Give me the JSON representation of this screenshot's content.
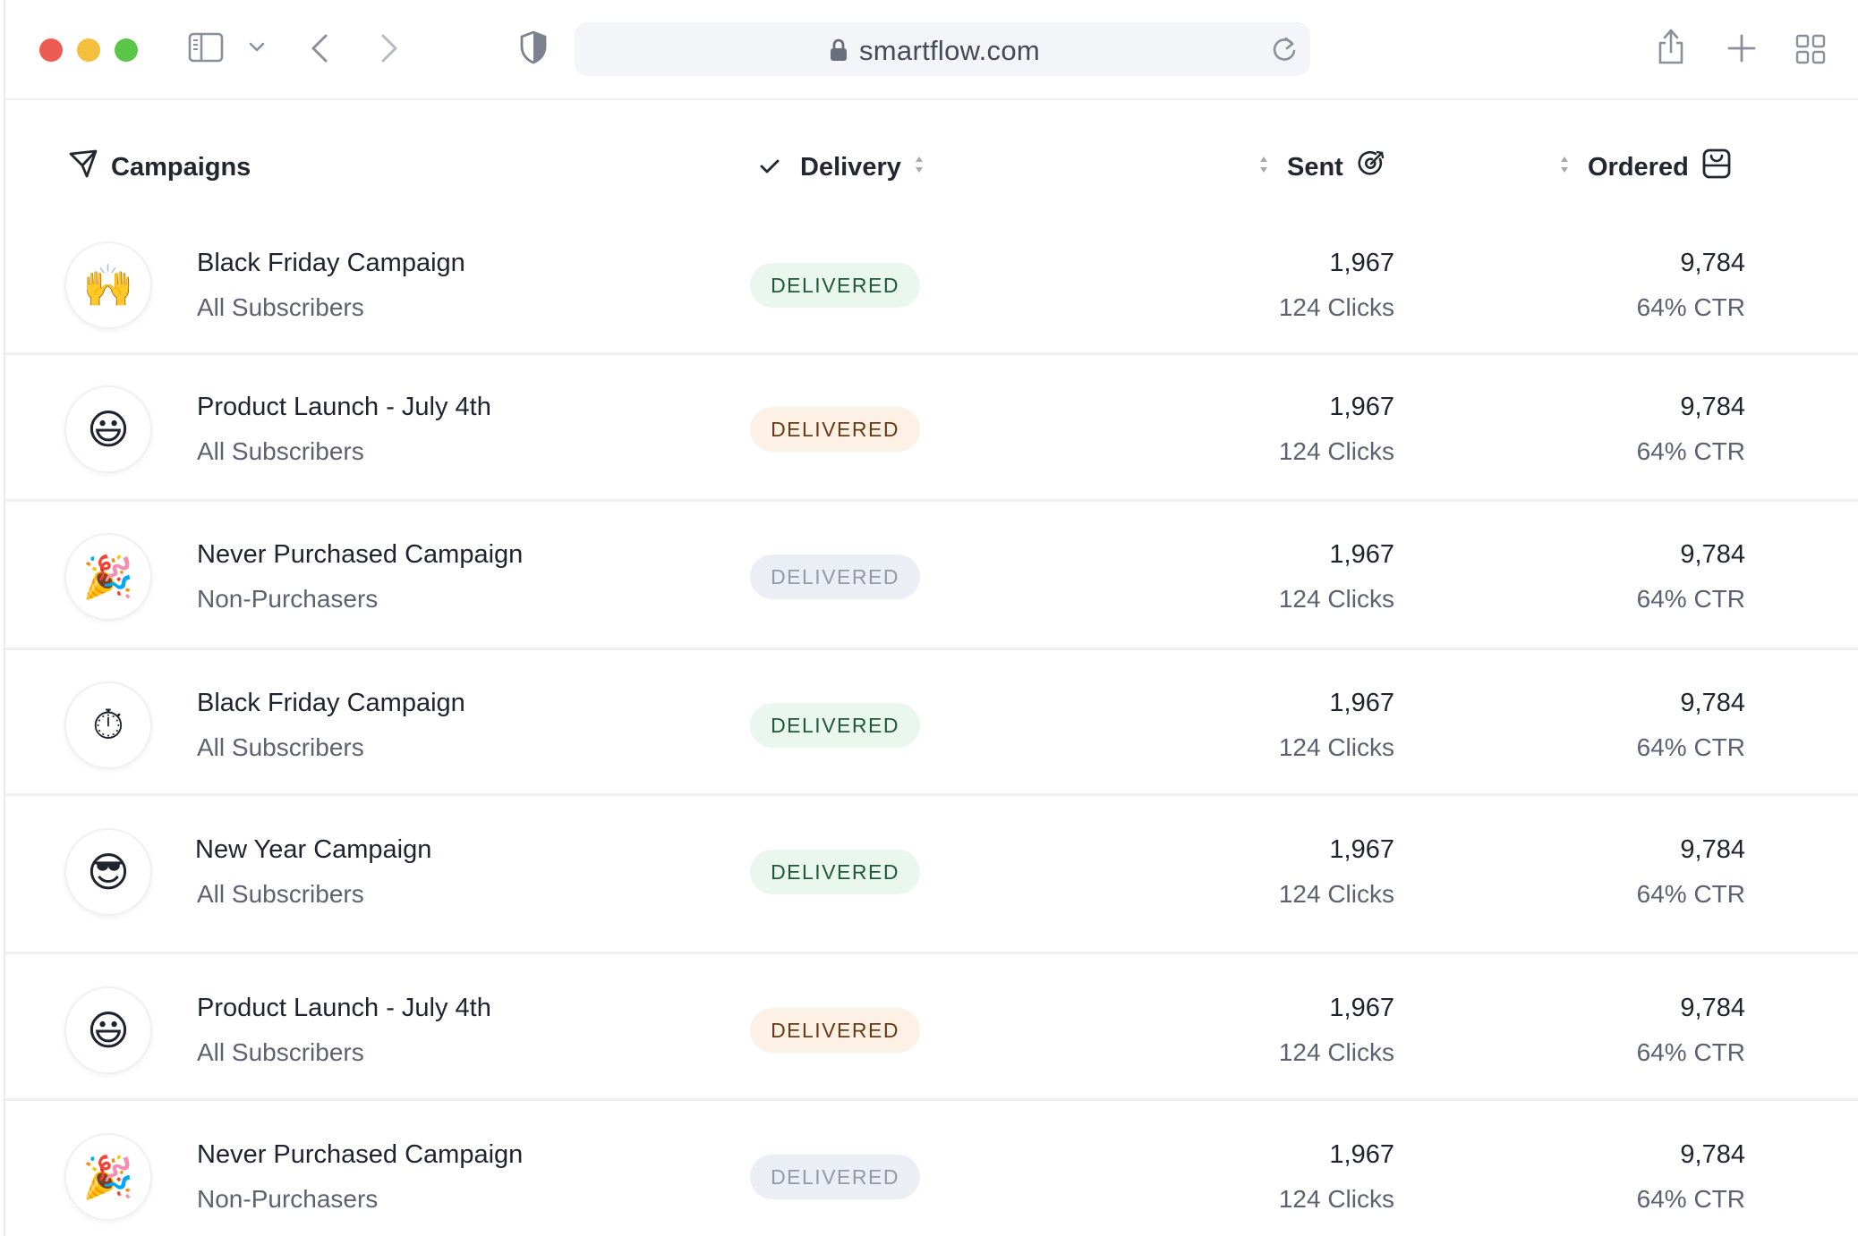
{
  "browser": {
    "url": "smartflow.com"
  },
  "table": {
    "headers": {
      "campaigns": "Campaigns",
      "delivery": "Delivery",
      "sent": "Sent",
      "ordered": "Ordered"
    },
    "rows": [
      {
        "emoji": "🙌",
        "name": "Black Friday Campaign",
        "audience": "All Subscribers",
        "status": "DELIVERED",
        "status_color": "green",
        "sent": "1,967",
        "clicks": "124 Clicks",
        "ordered": "9,784",
        "ctr": "64% CTR"
      },
      {
        "emoji": "😃",
        "name": "Product Launch - July 4th",
        "audience": "All Subscribers",
        "status": "DELIVERED",
        "status_color": "orange",
        "sent": "1,967",
        "clicks": "124 Clicks",
        "ordered": "9,784",
        "ctr": "64% CTR"
      },
      {
        "emoji": "🎉",
        "name": "Never Purchased Campaign",
        "audience": "Non-Purchasers",
        "status": "DELIVERED",
        "status_color": "grey",
        "sent": "1,967",
        "clicks": "124 Clicks",
        "ordered": "9,784",
        "ctr": "64% CTR"
      },
      {
        "emoji": "⏱",
        "name": "Black Friday Campaign",
        "audience": "All Subscribers",
        "status": "DELIVERED",
        "status_color": "green",
        "sent": "1,967",
        "clicks": "124 Clicks",
        "ordered": "9,784",
        "ctr": "64% CTR"
      },
      {
        "emoji": "😎",
        "name": "New Year Campaign",
        "audience": "All Subscribers",
        "status": "DELIVERED",
        "status_color": "green",
        "sent": "1,967",
        "clicks": "124 Clicks",
        "ordered": "9,784",
        "ctr": "64% CTR"
      },
      {
        "emoji": "😃",
        "name": "Product Launch - July 4th",
        "audience": "All Subscribers",
        "status": "DELIVERED",
        "status_color": "orange",
        "sent": "1,967",
        "clicks": "124 Clicks",
        "ordered": "9,784",
        "ctr": "64% CTR"
      },
      {
        "emoji": "🎉",
        "name": "Never Purchased Campaign",
        "audience": "Non-Purchasers",
        "status": "DELIVERED",
        "status_color": "grey",
        "sent": "1,967",
        "clicks": "124 Clicks",
        "ordered": "9,784",
        "ctr": "64% CTR"
      }
    ]
  },
  "colors": {
    "accent": "#1f2330",
    "delivered_green_bg": "#eaf7ef",
    "delivered_orange_bg": "#fdf1e6",
    "delivered_grey_bg": "#eceef6"
  }
}
